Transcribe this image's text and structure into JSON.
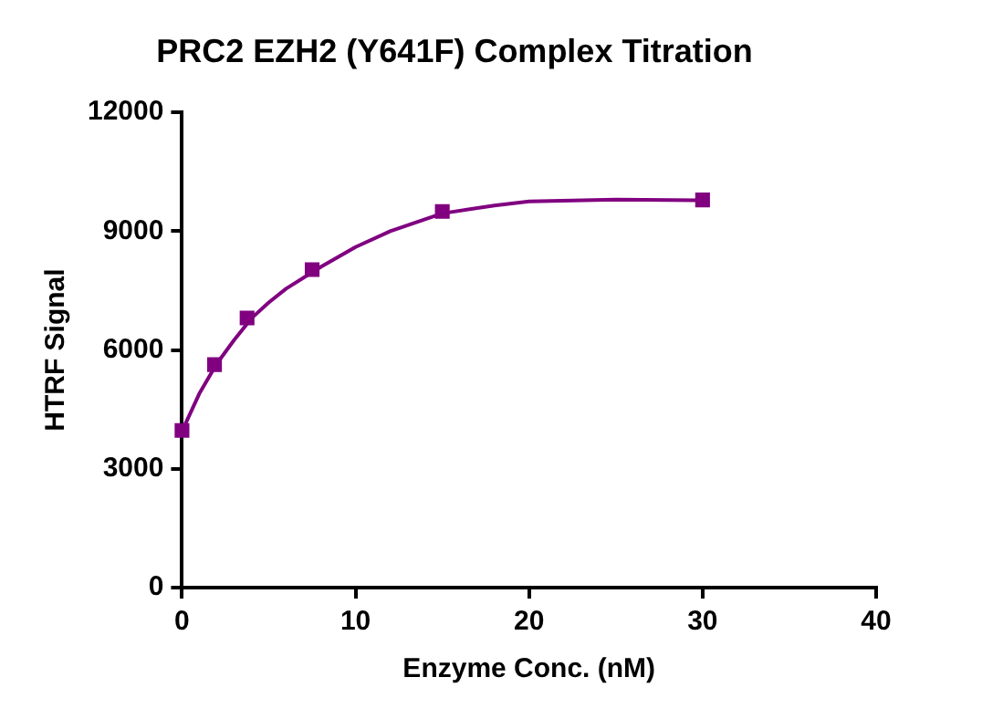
{
  "chart_data": {
    "type": "scatter",
    "title": "PRC2 EZH2 (Y641F) Complex Titration",
    "xlabel": "Enzyme Conc. (nM)",
    "ylabel": "HTRF Signal",
    "xlim": [
      0,
      40
    ],
    "xticks": [
      0,
      10,
      20,
      30,
      40
    ],
    "ylim": [
      0,
      12000
    ],
    "yticks": [
      0,
      3000,
      6000,
      9000,
      12000
    ],
    "grid": false,
    "legend": false,
    "series": [
      {
        "type": "line",
        "color": "#800080",
        "marker": "none",
        "line_style": "solid",
        "x": [
          0,
          1,
          2,
          3,
          4,
          5,
          6,
          8,
          10,
          12,
          15,
          18,
          20,
          25,
          30
        ],
        "values": [
          3950,
          4900,
          5650,
          6250,
          6800,
          7200,
          7550,
          8100,
          8600,
          9000,
          9450,
          9650,
          9750,
          9800,
          9780
        ]
      },
      {
        "type": "scatter",
        "color": "#800080",
        "marker": "square",
        "x": [
          0,
          1.875,
          3.75,
          7.5,
          15,
          30
        ],
        "values": [
          3970,
          5630,
          6810,
          8030,
          9500,
          9790
        ]
      }
    ]
  }
}
